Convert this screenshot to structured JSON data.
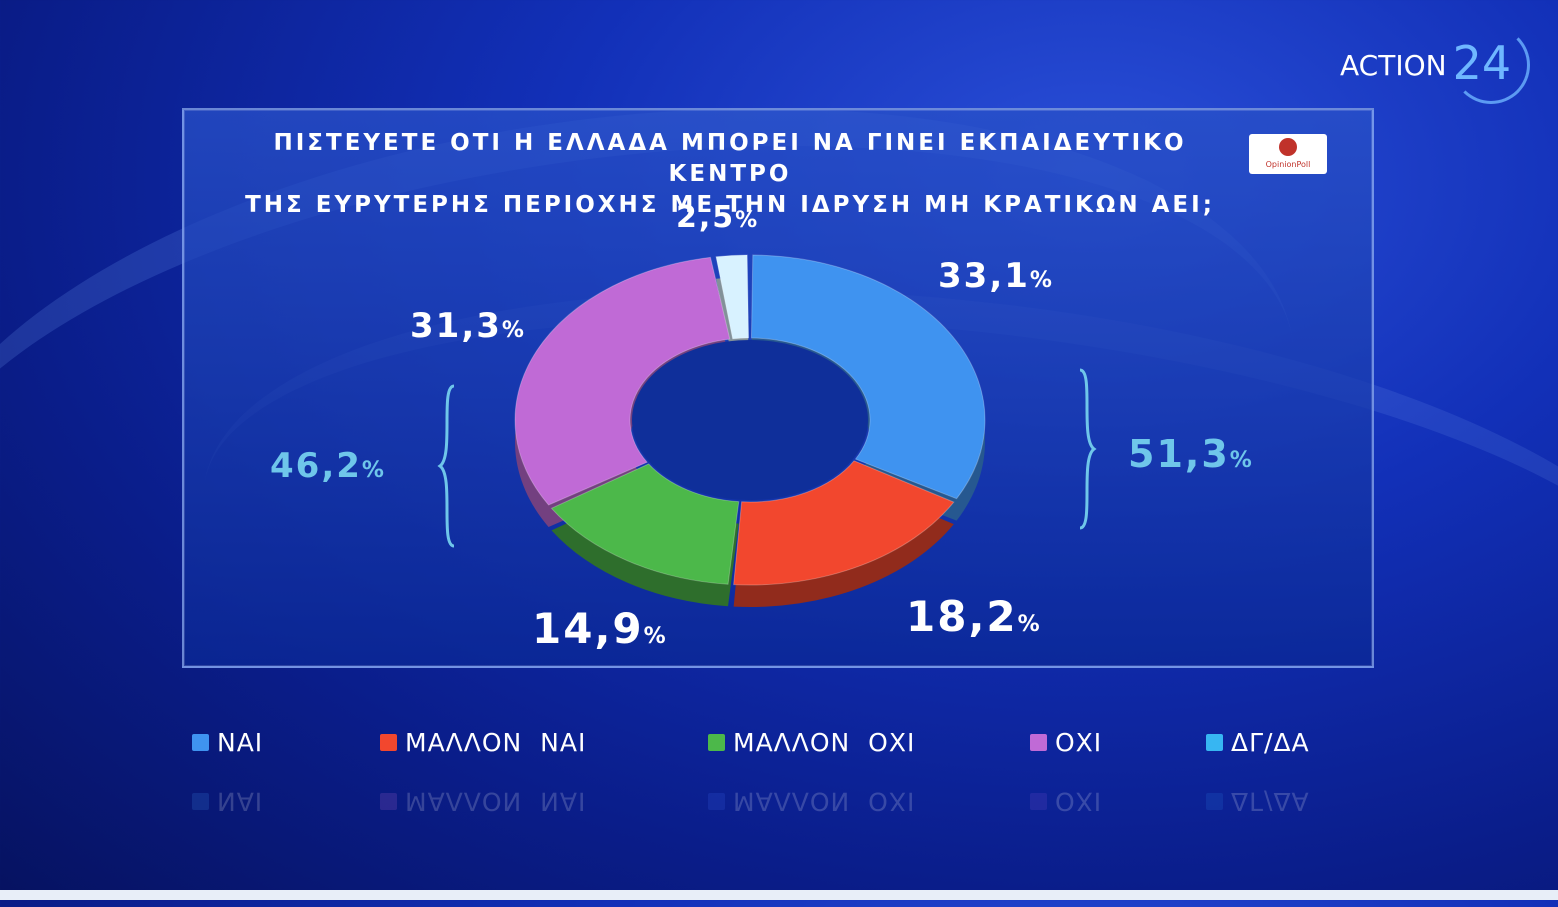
{
  "brand": {
    "word": "ACTION",
    "number": "24"
  },
  "poll_logo": {
    "label": "OpinionPoll"
  },
  "question": {
    "line1": "ΠΙΣΤΕΥΕΤΕ ΟΤΙ Η ΕΛΛΑΔΑ ΜΠΟΡΕΙ ΝΑ ΓΙΝΕΙ ΕΚΠΑΙΔΕΥΤΙΚΟ ΚΕΝΤΡΟ",
    "line2": "ΤΗΣ ΕΥΡΥΤΕΡΗΣ ΠΕΡΙΟΧΗΣ ΜΕ ΤΗΝ ΙΔΡΥΣΗ ΜΗ ΚΡΑΤΙΚΩΝ ΑΕΙ;"
  },
  "chart_data": {
    "type": "pie",
    "donut": true,
    "title": "ΠΙΣΤΕΥΕΤΕ ΟΤΙ Η ΕΛΛΑΔΑ ΜΠΟΡΕΙ ΝΑ ΓΙΝΕΙ ΕΚΠΑΙΔΕΥΤΙΚΟ ΚΕΝΤΡΟ ΤΗΣ ΕΥΡΥΤΕΡΗΣ ΠΕΡΙΟΧΗΣ ΜΕ ΤΗΝ ΙΔΡΥΣΗ ΜΗ ΚΡΑΤΙΚΩΝ ΑΕΙ;",
    "legend_position": "bottom",
    "slices": [
      {
        "label": "ΝΑΙ",
        "value": 33.1,
        "value_text": "33,1",
        "color": "#3f93f0"
      },
      {
        "label": "ΜΑΛΛΟΝ ΝΑΙ",
        "value": 18.2,
        "value_text": "18,2",
        "color": "#f2472e"
      },
      {
        "label": "ΜΑΛΛΟΝ ΟΧΙ",
        "value": 14.9,
        "value_text": "14,9",
        "color": "#4cb84a"
      },
      {
        "label": "ΟΧΙ",
        "value": 31.3,
        "value_text": "31,3",
        "color": "#c06ad6"
      },
      {
        "label": "ΔΓ/ΔΑ",
        "value": 2.5,
        "value_text": "2,5",
        "color": "#d8f2ff"
      }
    ],
    "groups": [
      {
        "value_text": "51,3",
        "slices": [
          "ΝΑΙ",
          "ΜΑΛΛΟΝ ΝΑΙ"
        ]
      },
      {
        "value_text": "46,2",
        "slices": [
          "ΟΧΙ",
          "ΜΑΛΛΟΝ ΟΧΙ"
        ]
      }
    ],
    "percent_sign": "%"
  },
  "legend": [
    {
      "label": "ΝΑΙ",
      "color": "#3f93f0"
    },
    {
      "label": "ΜΑΛΛΟΝ  ΝΑΙ",
      "color": "#f2472e"
    },
    {
      "label": "ΜΑΛΛΟΝ  ΟΧΙ",
      "color": "#4cb84a"
    },
    {
      "label": "ΟΧΙ",
      "color": "#c06ad6"
    },
    {
      "label": "ΔΓ/ΔΑ",
      "color": "#37b6f2"
    }
  ]
}
